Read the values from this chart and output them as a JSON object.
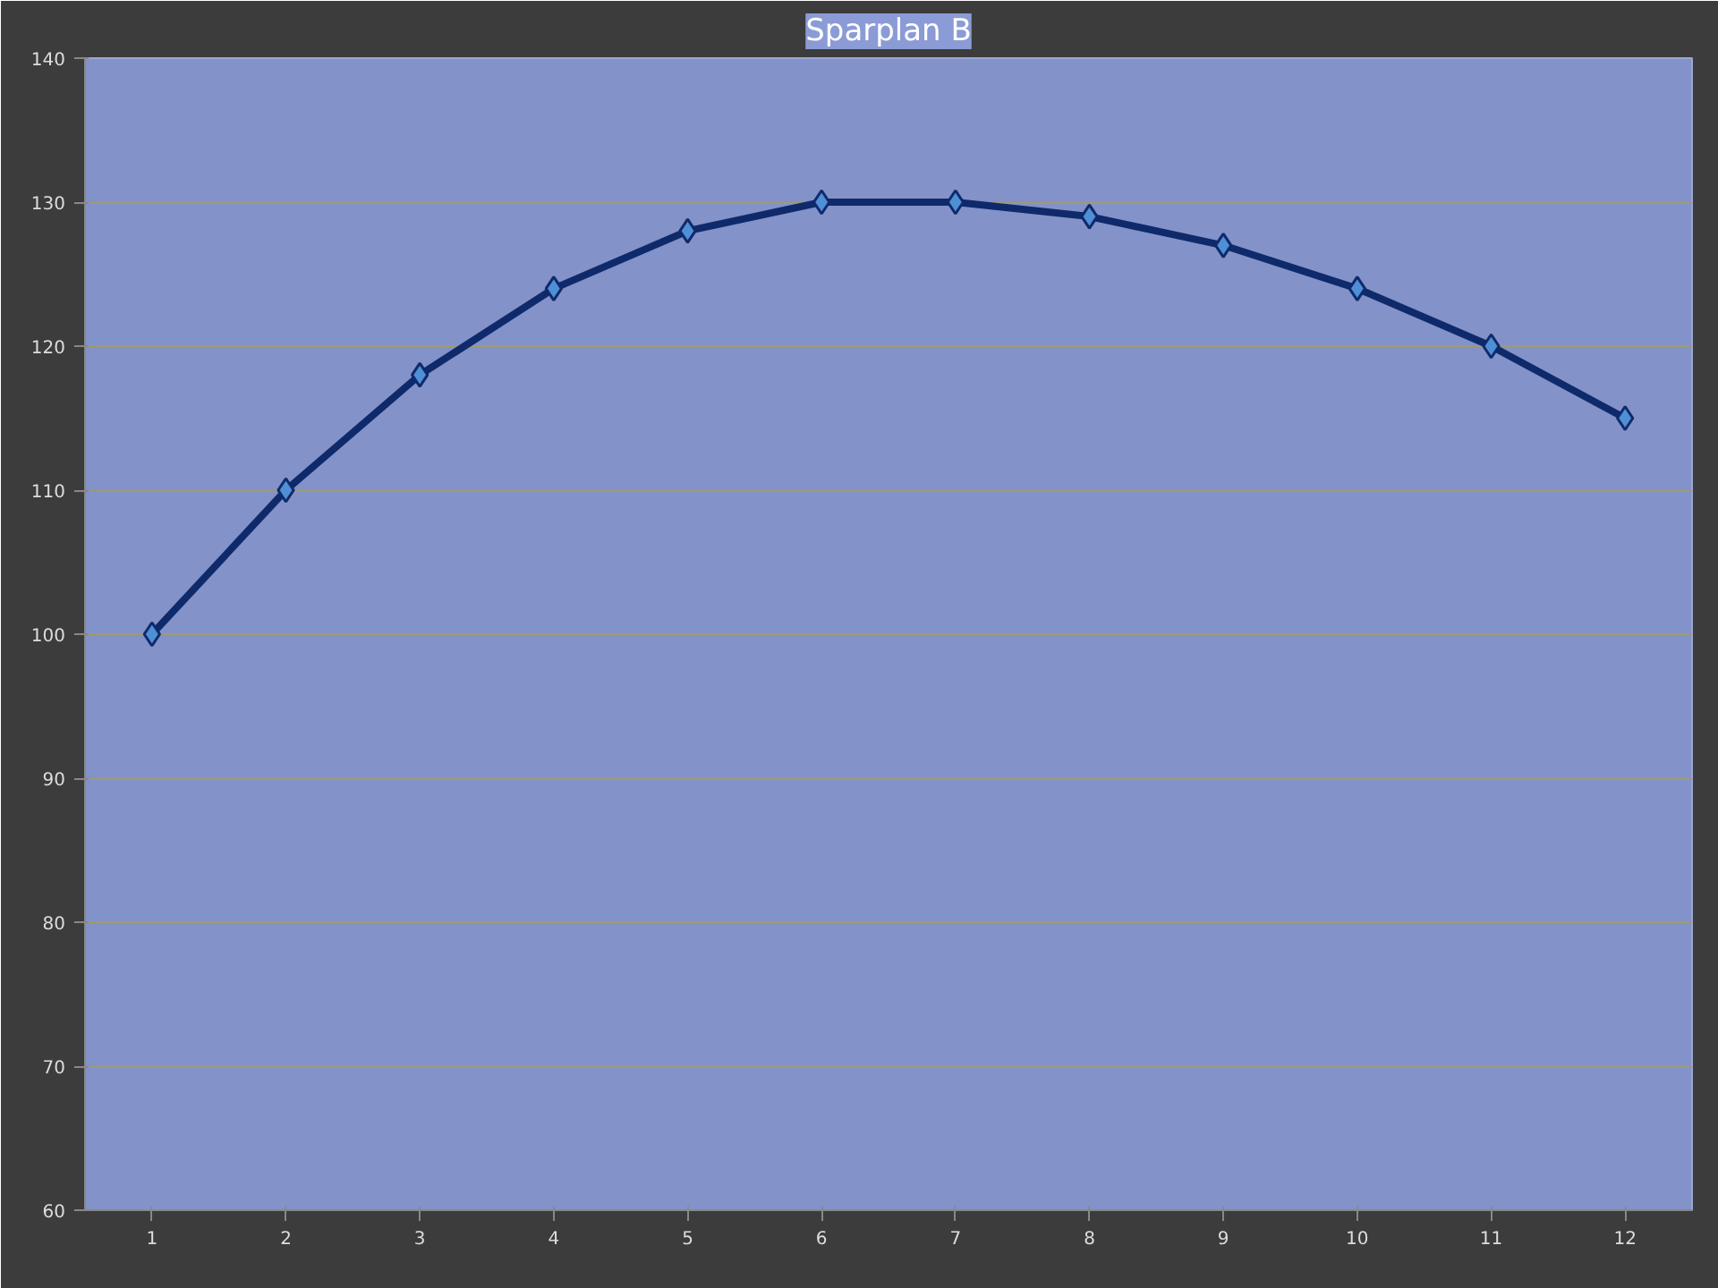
{
  "chart_data": {
    "type": "line",
    "title": "Sparplan B",
    "categories": [
      "1",
      "2",
      "3",
      "4",
      "5",
      "6",
      "7",
      "8",
      "9",
      "10",
      "11",
      "12"
    ],
    "series": [
      {
        "color": "#0f2a6b",
        "values": [
          100,
          110,
          118,
          124,
          128,
          130,
          130,
          129,
          127,
          124,
          120,
          115
        ]
      }
    ],
    "ylim": [
      60,
      140
    ],
    "yticks": [
      60,
      70,
      80,
      90,
      100,
      110,
      120,
      130,
      140
    ],
    "grid": "y",
    "marker": "diamond",
    "line_style": "solid"
  }
}
